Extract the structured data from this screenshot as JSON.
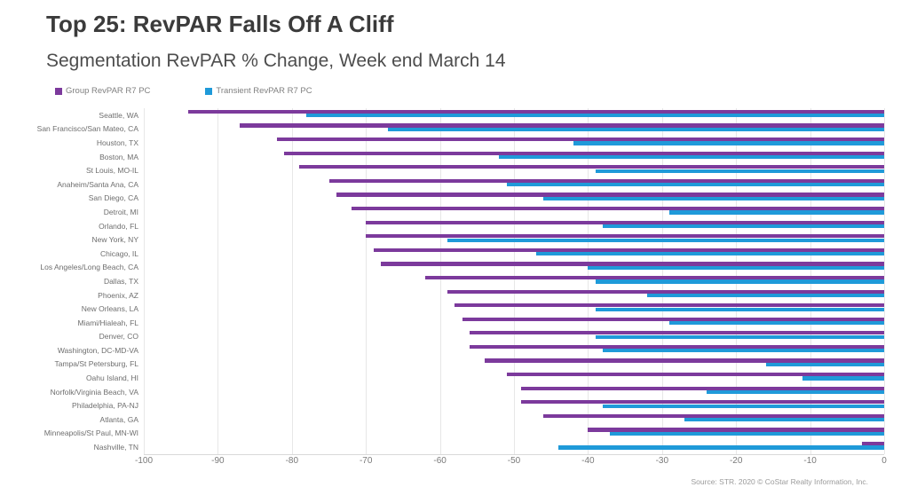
{
  "slide": {
    "title": "Top 25: RevPAR Falls Off A Cliff",
    "subtitle": "Segmentation RevPAR % Change, Week end March 14",
    "source": "Source: STR. 2020 © CoStar Realty Information, Inc."
  },
  "legend": [
    {
      "label": "Group RevPAR R7 PC",
      "color": "#7c3a9c"
    },
    {
      "label": "Transient RevPAR R7 PC",
      "color": "#1f9ad9"
    }
  ],
  "chart_data": {
    "type": "bar",
    "orientation": "horizontal",
    "title": "Top 25: RevPAR Falls Off A Cliff",
    "subtitle": "Segmentation RevPAR % Change, Week end March 14",
    "categories": [
      "Seattle, WA",
      "San Francisco/San Mateo, CA",
      "Houston, TX",
      "Boston, MA",
      "St Louis, MO-IL",
      "Anaheim/Santa Ana, CA",
      "San Diego, CA",
      "Detroit, MI",
      "Orlando, FL",
      "New York, NY",
      "Chicago, IL",
      "Los Angeles/Long Beach, CA",
      "Dallas, TX",
      "Phoenix, AZ",
      "New Orleans, LA",
      "Miami/Hialeah, FL",
      "Denver, CO",
      "Washington, DC-MD-VA",
      "Tampa/St Petersburg, FL",
      "Oahu Island, HI",
      "Norfolk/Virginia Beach, VA",
      "Philadelphia, PA-NJ",
      "Atlanta, GA",
      "Minneapolis/St Paul, MN-WI",
      "Nashville, TN"
    ],
    "series": [
      {
        "name": "Group RevPAR R7 PC",
        "color": "#7c3a9c",
        "values": [
          -94,
          -87,
          -82,
          -81,
          -79,
          -75,
          -74,
          -72,
          -70,
          -70,
          -69,
          -68,
          -62,
          -59,
          -58,
          -57,
          -56,
          -56,
          -54,
          -51,
          -49,
          -49,
          -46,
          -40,
          -3
        ]
      },
      {
        "name": "Transient RevPAR R7 PC",
        "color": "#1f9ad9",
        "values": [
          -78,
          -67,
          -42,
          -52,
          -39,
          -51,
          -46,
          -29,
          -38,
          -59,
          -47,
          -40,
          -39,
          -32,
          -39,
          -29,
          -39,
          -38,
          -16,
          -11,
          -24,
          -38,
          -27,
          -37,
          -44
        ]
      }
    ],
    "xlim": [
      -100,
      0
    ],
    "x_ticks": [
      -100,
      -90,
      -80,
      -70,
      -60,
      -50,
      -40,
      -30,
      -20,
      -10,
      0
    ],
    "grid": true,
    "legend_position": "top-left"
  }
}
